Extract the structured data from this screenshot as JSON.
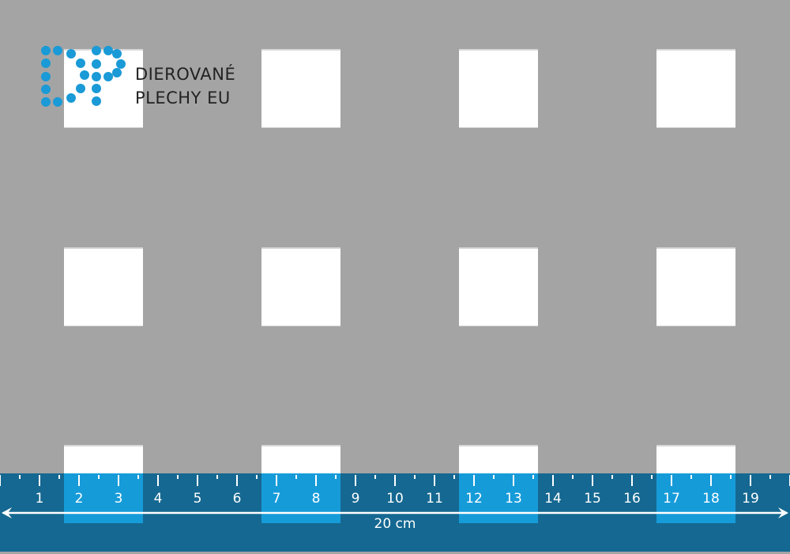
{
  "logo": {
    "line1": "DIEROVANÉ",
    "line2": "PLECHY EU",
    "color": "#1a9ad6"
  },
  "ruler": {
    "numbers": [
      "1",
      "2",
      "3",
      "4",
      "5",
      "6",
      "7",
      "8",
      "9",
      "10",
      "11",
      "12",
      "13",
      "14",
      "15",
      "16",
      "17",
      "18",
      "19"
    ],
    "length_label": "20 cm",
    "background": "#156891",
    "highlight": "#169bd9"
  },
  "sheet": {
    "background": "#a4a4a4",
    "hole_shape": "square"
  }
}
